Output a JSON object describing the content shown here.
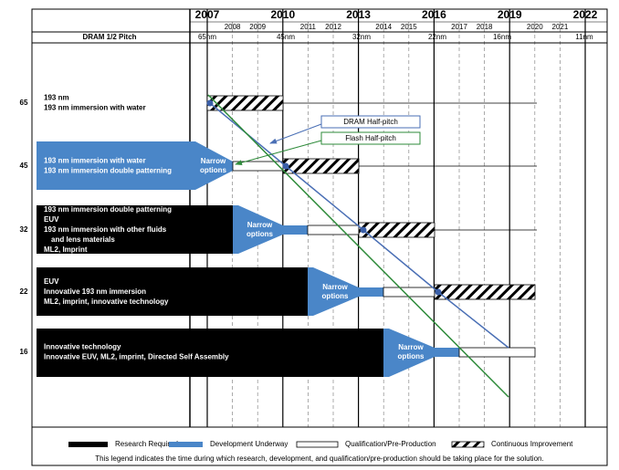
{
  "header": {
    "years": [
      "2007",
      "2010",
      "2013",
      "2016",
      "2019",
      "2022"
    ],
    "minor_years": [
      "2008",
      "2009",
      "2011",
      "2012",
      "2014",
      "2015",
      "2017",
      "2018",
      "2020",
      "2021"
    ],
    "pitch_label": "DRAM 1/2 Pitch",
    "nodes": [
      "65nm",
      "45nm",
      "32nm",
      "22nm",
      "16nm",
      "11nm"
    ]
  },
  "rows": [
    {
      "label": "65",
      "lines": [
        "193 nm",
        "193 nm immersion with water"
      ]
    },
    {
      "label": "45",
      "lines": [
        "193 nm immersion with water",
        "193 nm immersion double patterning"
      ],
      "options": [
        "Narrow",
        "options"
      ]
    },
    {
      "label": "32",
      "lines": [
        "193 nm immersion double patterning",
        "EUV",
        "193 nm immersion with other fluids",
        "and lens materials",
        "ML2, Imprint"
      ],
      "options": [
        "Narrow",
        "options"
      ]
    },
    {
      "label": "22",
      "lines": [
        "EUV",
        "Innovative 193 nm immersion",
        "ML2, imprint, innovative technology"
      ],
      "options": [
        "Narrow",
        "options"
      ]
    },
    {
      "label": "16",
      "lines": [
        "Innovative technology",
        "Innovative EUV, ML2, imprint, Directed Self Assembly"
      ],
      "options": [
        "Narrow",
        "options"
      ]
    }
  ],
  "callouts": [
    "DRAM Half-pitch",
    "Flash Half-pitch"
  ],
  "legend": [
    "Research Required",
    "Development Underway",
    "Qualification/Pre-Production",
    "Continuous Improvement"
  ],
  "note": "This legend indicates the time during which research, development, and qualification/pre-production should be taking place for the solution."
}
